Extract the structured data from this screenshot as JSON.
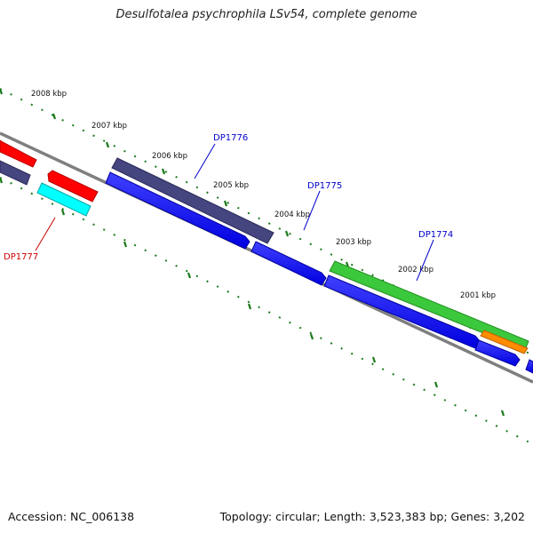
{
  "title": "Desulfotalea psychrophila LSv54, complete genome",
  "footer": {
    "accession": "Accession: NC_006138",
    "summary": "Topology: circular; Length: 3,523,383 bp; Genes: 3,202"
  },
  "ticks": [
    "2008 kbp",
    "2007 kbp",
    "2006 kbp",
    "2005 kbp",
    "2004 kbp",
    "2003 kbp",
    "2002 kbp",
    "2001 kbp"
  ],
  "genes": [
    {
      "name": "DP1776",
      "color": "#0000cc"
    },
    {
      "name": "DP1775",
      "color": "#0000cc"
    },
    {
      "name": "DP1774",
      "color": "#0000cc"
    },
    {
      "name": "DP1777",
      "color": "#cc0000"
    }
  ],
  "colors": {
    "backbone": "#7f7f7f",
    "tick": "#1a7a1a",
    "feature_blue": "#0000ff",
    "feature_navy": "#45457f",
    "feature_red": "#ff0000",
    "feature_cyan": "#00ffff",
    "feature_green": "#3cc83c",
    "feature_orange": "#ff8c00"
  }
}
